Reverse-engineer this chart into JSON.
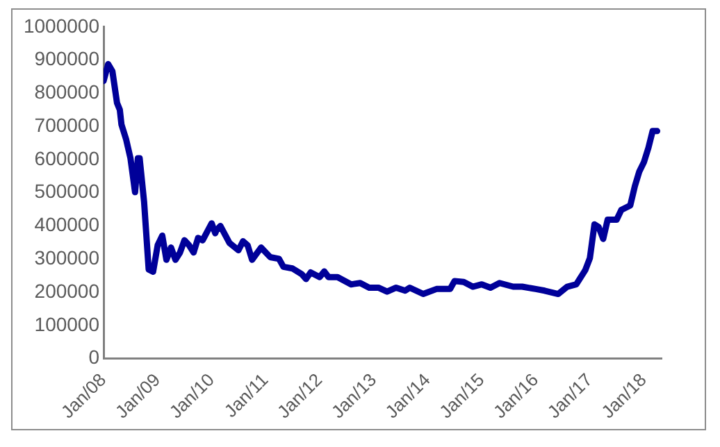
{
  "chart_data": {
    "type": "line",
    "x": [
      "2008-01",
      "2008-02",
      "2008-03",
      "2008-04-01",
      "2008-04-20",
      "2008-05",
      "2008-06",
      "2008-07",
      "2008-08-01",
      "2008-08-20",
      "2008-09",
      "2008-10",
      "2008-11",
      "2008-12",
      "2009-01",
      "2009-02",
      "2009-03",
      "2009-04",
      "2009-05",
      "2009-06",
      "2009-07",
      "2009-08",
      "2009-09",
      "2009-10",
      "2009-11",
      "2010-01-01",
      "2010-01-25",
      "2010-02",
      "2010-03",
      "2010-05",
      "2010-07",
      "2010-08",
      "2010-09",
      "2010-10",
      "2010-12",
      "2011-02",
      "2011-04",
      "2011-05",
      "2011-07",
      "2011-09",
      "2011-10",
      "2011-11",
      "2012-01",
      "2012-02",
      "2012-03",
      "2012-05",
      "2012-08",
      "2012-10",
      "2012-12",
      "2013-02",
      "2013-04",
      "2013-06",
      "2013-08",
      "2013-09",
      "2013-12",
      "2014-03",
      "2014-06",
      "2014-07",
      "2014-09",
      "2014-11",
      "2015-01",
      "2015-03",
      "2015-05",
      "2015-08",
      "2015-10",
      "2016-01",
      "2016-03",
      "2016-06",
      "2016-08",
      "2016-10",
      "2016-12",
      "2017-01",
      "2017-02",
      "2017-03",
      "2017-04",
      "2017-05",
      "2017-07",
      "2017-08",
      "2017-10",
      "2017-11",
      "2017-12",
      "2018-01",
      "2018-02",
      "2018-03",
      "2018-04"
    ],
    "series": [
      {
        "color": "#000099",
        "values": [
          837000,
          888000,
          866000,
          771000,
          750000,
          706000,
          662000,
          604000,
          502000,
          604000,
          604000,
          473000,
          269000,
          262000,
          342000,
          371000,
          298000,
          335000,
          298000,
          320000,
          357000,
          342000,
          320000,
          364000,
          357000,
          408000,
          378000,
          386000,
          400000,
          349000,
          327000,
          354000,
          342000,
          298000,
          335000,
          306000,
          301000,
          277000,
          272000,
          255000,
          240000,
          260000,
          246000,
          263000,
          246000,
          246000,
          224000,
          228000,
          214000,
          214000,
          202000,
          214000,
          205000,
          214000,
          195000,
          210000,
          210000,
          234000,
          231000,
          217000,
          224000,
          214000,
          228000,
          217000,
          217000,
          210000,
          205000,
          195000,
          217000,
          224000,
          267000,
          303000,
          405000,
          397000,
          361000,
          419000,
          419000,
          448000,
          462000,
          520000,
          564000,
          592000,
          636000,
          686000,
          686000
        ]
      }
    ],
    "xlim": [
      "2008-01",
      "2018-05"
    ],
    "xticks": [
      {
        "value": "2008-01",
        "label": "Jan/08"
      },
      {
        "value": "2009-01",
        "label": "Jan/09"
      },
      {
        "value": "2010-01",
        "label": "Jan/10"
      },
      {
        "value": "2011-01",
        "label": "Jan/11"
      },
      {
        "value": "2012-01",
        "label": "Jan/12"
      },
      {
        "value": "2013-01",
        "label": "Jan/13"
      },
      {
        "value": "2014-01",
        "label": "Jan/14"
      },
      {
        "value": "2015-01",
        "label": "Jan/15"
      },
      {
        "value": "2016-01",
        "label": "Jan/16"
      },
      {
        "value": "2017-01",
        "label": "Jan/17"
      },
      {
        "value": "2018-01",
        "label": "Jan/18"
      }
    ],
    "ylim": [
      0,
      1000000
    ],
    "yticks": [
      0,
      100000,
      200000,
      300000,
      400000,
      500000,
      600000,
      700000,
      800000,
      900000,
      1000000
    ],
    "grid": false,
    "legend": false,
    "marker": "none",
    "line_style": "solid"
  }
}
